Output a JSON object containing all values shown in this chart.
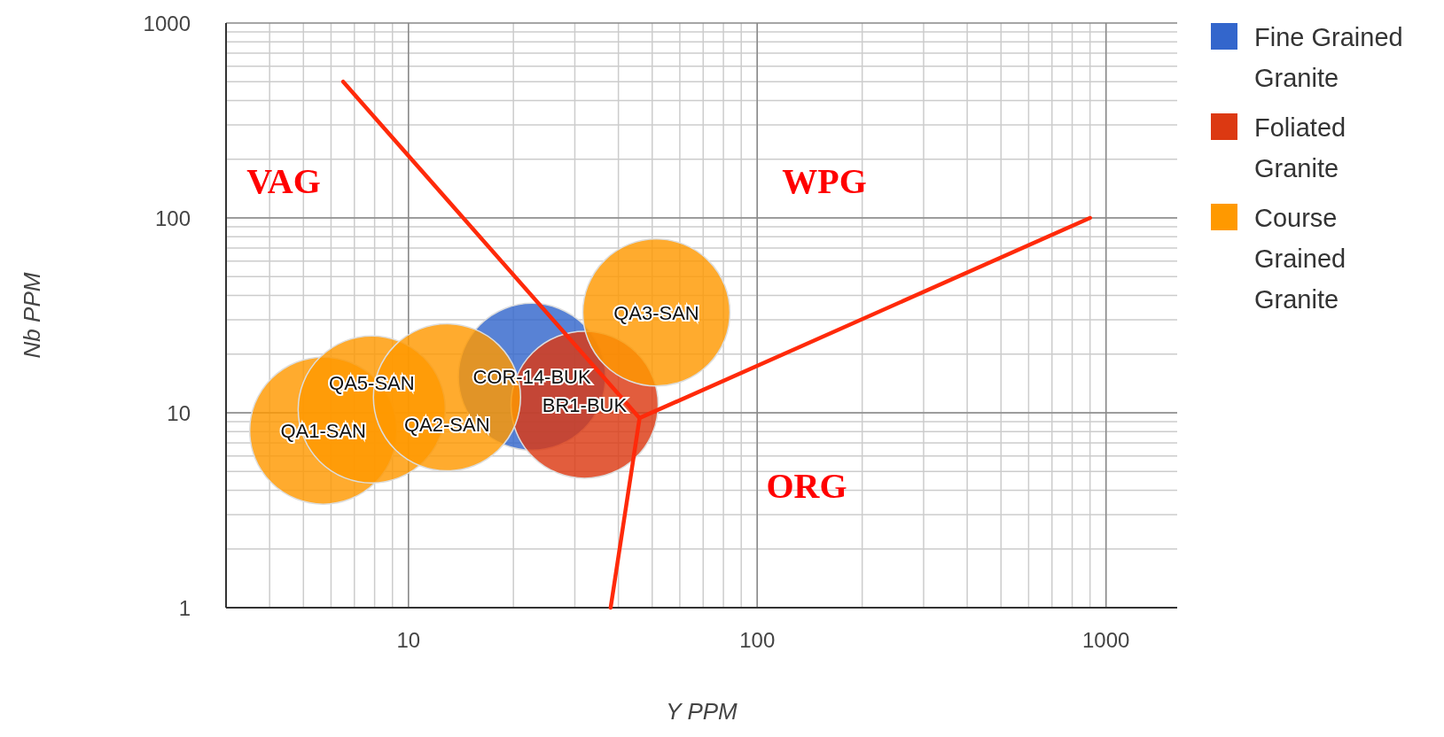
{
  "chart_data": {
    "type": "bubble",
    "xlabel": "Y PPM",
    "ylabel": "Nb PPM",
    "log": "xy",
    "xlim": [
      3,
      1600
    ],
    "ylim": [
      1,
      1000
    ],
    "xticks": [
      10,
      100,
      1000
    ],
    "yticks": [
      1,
      10,
      100,
      1000
    ],
    "grid": true,
    "legend": "right",
    "series": [
      {
        "name": "Fine Grained Granite",
        "color": "#3366cc",
        "x": [
          22.6
        ],
        "values": [
          15.3
        ],
        "sizes": [
          1
        ]
      },
      {
        "name": "Foliated Granite",
        "color": "#dc3912",
        "x": [
          32
        ],
        "values": [
          11
        ],
        "sizes": [
          1
        ]
      },
      {
        "name": "Course Grained Granite",
        "color": "#ff9900",
        "x": [
          5.7,
          7.85,
          12.9,
          51.4
        ],
        "values": [
          8.1,
          10.4,
          12,
          32.7
        ],
        "sizes": [
          1,
          1,
          1,
          1
        ]
      },
      {
        "type": "line",
        "color": "#ff2a0a",
        "x": [
          6.5,
          46
        ],
        "values": [
          500,
          9.4
        ]
      },
      {
        "type": "line",
        "color": "#ff2a0a",
        "x": [
          38,
          46,
          900
        ],
        "values": [
          1,
          9.4,
          100
        ]
      }
    ],
    "annotations": [
      {
        "text": "QA1-SAN",
        "x": 5.7,
        "y": 8.1
      },
      {
        "text": "QA5-SAN",
        "x": 7.85,
        "y": 10.4
      },
      {
        "text": "QA2-SAN",
        "x": 12.9,
        "y": 12
      },
      {
        "text": "COR-14-BUK",
        "x": 22.6,
        "y": 15.3
      },
      {
        "text": "BR1-BUK",
        "x": 32,
        "y": 11
      },
      {
        "text": "QA3-SAN",
        "x": 51.4,
        "y": 32.7
      },
      "VAG",
      "WPG",
      "ORG"
    ]
  }
}
